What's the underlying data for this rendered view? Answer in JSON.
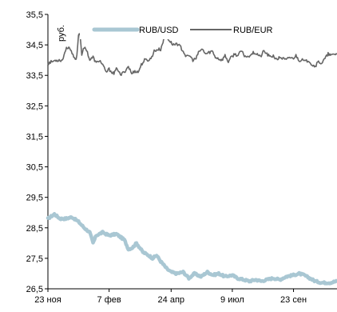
{
  "chart_data": {
    "type": "line",
    "title": "",
    "xlabel": "",
    "ylabel": "руб.",
    "ylim": [
      26.5,
      35.5
    ],
    "yticks": [
      "35,5",
      "34,5",
      "33,5",
      "32,5",
      "31,5",
      "30,5",
      "29,5",
      "28,5",
      "27,5",
      "26,5"
    ],
    "ytick_values": [
      35.5,
      34.5,
      33.5,
      32.5,
      31.5,
      30.5,
      29.5,
      28.5,
      27.5,
      26.5
    ],
    "xticks": [
      "23 ноя",
      "7 фев",
      "24 апр",
      "9 июл",
      "23 сен"
    ],
    "xtick_index": [
      0,
      76,
      153,
      229,
      305
    ],
    "x_count": 360,
    "grid": false,
    "legend_position": "top",
    "series": [
      {
        "name": "RUB/USD",
        "color": "#a9c7d3",
        "keypoints": [
          [
            0,
            28.8
          ],
          [
            8,
            28.95
          ],
          [
            15,
            28.8
          ],
          [
            22,
            28.8
          ],
          [
            30,
            28.85
          ],
          [
            38,
            28.7
          ],
          [
            45,
            28.5
          ],
          [
            52,
            28.35
          ],
          [
            56,
            28.0
          ],
          [
            60,
            28.25
          ],
          [
            68,
            28.35
          ],
          [
            76,
            28.25
          ],
          [
            85,
            28.3
          ],
          [
            90,
            28.2
          ],
          [
            95,
            28.1
          ],
          [
            100,
            27.8
          ],
          [
            105,
            27.85
          ],
          [
            110,
            28.0
          ],
          [
            118,
            27.7
          ],
          [
            125,
            27.6
          ],
          [
            130,
            27.5
          ],
          [
            135,
            27.6
          ],
          [
            140,
            27.4
          ],
          [
            148,
            27.15
          ],
          [
            153,
            27.05
          ],
          [
            160,
            27.0
          ],
          [
            168,
            27.05
          ],
          [
            175,
            26.85
          ],
          [
            182,
            27.0
          ],
          [
            190,
            26.9
          ],
          [
            198,
            27.05
          ],
          [
            205,
            26.95
          ],
          [
            212,
            27.0
          ],
          [
            220,
            26.9
          ],
          [
            229,
            26.95
          ],
          [
            235,
            26.85
          ],
          [
            243,
            26.8
          ],
          [
            250,
            26.75
          ],
          [
            258,
            26.8
          ],
          [
            265,
            26.75
          ],
          [
            272,
            26.8
          ],
          [
            280,
            26.85
          ],
          [
            288,
            26.8
          ],
          [
            296,
            26.9
          ],
          [
            305,
            26.95
          ],
          [
            312,
            27.0
          ],
          [
            318,
            26.95
          ],
          [
            325,
            26.85
          ],
          [
            332,
            26.75
          ],
          [
            340,
            26.7
          ],
          [
            350,
            26.7
          ],
          [
            359,
            26.75
          ]
        ]
      },
      {
        "name": "RUB/EUR",
        "color": "#666666",
        "keypoints": [
          [
            0,
            33.9
          ],
          [
            10,
            34.0
          ],
          [
            18,
            34.0
          ],
          [
            22,
            34.35
          ],
          [
            26,
            34.45
          ],
          [
            30,
            34.2
          ],
          [
            34,
            34.0
          ],
          [
            36,
            34.15
          ],
          [
            38,
            34.85
          ],
          [
            40,
            34.85
          ],
          [
            42,
            34.2
          ],
          [
            45,
            34.4
          ],
          [
            48,
            34.35
          ],
          [
            52,
            34.0
          ],
          [
            56,
            34.1
          ],
          [
            60,
            33.9
          ],
          [
            64,
            34.0
          ],
          [
            68,
            33.85
          ],
          [
            72,
            33.6
          ],
          [
            76,
            33.7
          ],
          [
            82,
            33.55
          ],
          [
            86,
            33.75
          ],
          [
            90,
            33.5
          ],
          [
            96,
            33.65
          ],
          [
            100,
            33.8
          ],
          [
            104,
            33.55
          ],
          [
            108,
            33.65
          ],
          [
            112,
            33.6
          ],
          [
            116,
            33.85
          ],
          [
            120,
            34.0
          ],
          [
            124,
            34.0
          ],
          [
            128,
            34.05
          ],
          [
            132,
            34.3
          ],
          [
            136,
            34.35
          ],
          [
            140,
            34.35
          ],
          [
            144,
            34.7
          ],
          [
            148,
            34.75
          ],
          [
            152,
            34.6
          ],
          [
            156,
            34.5
          ],
          [
            160,
            34.55
          ],
          [
            164,
            34.45
          ],
          [
            168,
            34.3
          ],
          [
            172,
            34.1
          ],
          [
            176,
            34.15
          ],
          [
            180,
            34.0
          ],
          [
            184,
            34.05
          ],
          [
            188,
            34.3
          ],
          [
            192,
            34.35
          ],
          [
            196,
            34.2
          ],
          [
            200,
            34.25
          ],
          [
            204,
            34.3
          ],
          [
            208,
            34.1
          ],
          [
            212,
            34.05
          ],
          [
            216,
            34.0
          ],
          [
            220,
            34.15
          ],
          [
            224,
            33.95
          ],
          [
            228,
            34.1
          ],
          [
            232,
            34.2
          ],
          [
            236,
            34.15
          ],
          [
            240,
            34.3
          ],
          [
            244,
            34.15
          ],
          [
            248,
            34.1
          ],
          [
            252,
            34.2
          ],
          [
            256,
            34.25
          ],
          [
            260,
            34.2
          ],
          [
            264,
            34.1
          ],
          [
            268,
            34.3
          ],
          [
            272,
            34.2
          ],
          [
            276,
            34.1
          ],
          [
            280,
            34.15
          ],
          [
            284,
            34.0
          ],
          [
            288,
            34.1
          ],
          [
            292,
            34.05
          ],
          [
            296,
            34.0
          ],
          [
            300,
            34.1
          ],
          [
            304,
            34.05
          ],
          [
            308,
            34.15
          ],
          [
            312,
            34.0
          ],
          [
            316,
            34.0
          ],
          [
            320,
            33.95
          ],
          [
            324,
            34.0
          ],
          [
            328,
            33.85
          ],
          [
            332,
            33.8
          ],
          [
            336,
            33.95
          ],
          [
            340,
            33.9
          ],
          [
            344,
            34.05
          ],
          [
            348,
            34.2
          ],
          [
            352,
            34.15
          ],
          [
            356,
            34.2
          ],
          [
            359,
            34.2
          ]
        ]
      }
    ]
  }
}
